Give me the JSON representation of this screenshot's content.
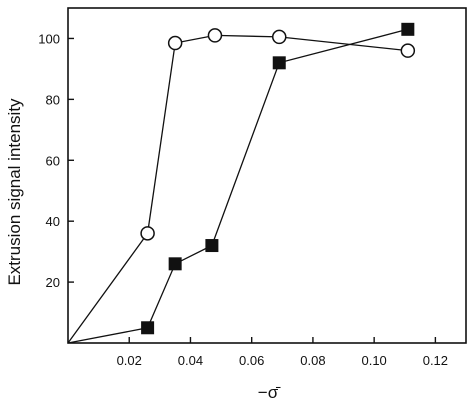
{
  "chart_data": {
    "type": "line",
    "xlabel": "−σ̄",
    "ylabel": "Extrusion signal intensity",
    "xlim": [
      0,
      0.13
    ],
    "ylim": [
      0,
      110
    ],
    "x_ticks": [
      0.02,
      0.04,
      0.06,
      0.08,
      0.1,
      0.12
    ],
    "x_tick_labels": [
      "0.02",
      "0.04",
      "0.06",
      "0.08",
      "0.10",
      "0.12"
    ],
    "y_ticks": [
      20,
      40,
      60,
      80,
      100
    ],
    "y_tick_labels": [
      "20",
      "40",
      "60",
      "80",
      "100"
    ],
    "grid": false,
    "legend": "none",
    "series": [
      {
        "marker": "open-circle",
        "color": "#111111",
        "points": [
          {
            "x": 0,
            "y": 0
          },
          {
            "x": 0.026,
            "y": 36
          },
          {
            "x": 0.035,
            "y": 98.5
          },
          {
            "x": 0.048,
            "y": 101
          },
          {
            "x": 0.069,
            "y": 100.5
          },
          {
            "x": 0.111,
            "y": 96
          }
        ]
      },
      {
        "marker": "filled-square",
        "color": "#111111",
        "points": [
          {
            "x": 0,
            "y": 0
          },
          {
            "x": 0.026,
            "y": 5
          },
          {
            "x": 0.035,
            "y": 26
          },
          {
            "x": 0.047,
            "y": 32
          },
          {
            "x": 0.069,
            "y": 92
          },
          {
            "x": 0.111,
            "y": 103
          }
        ]
      }
    ]
  }
}
